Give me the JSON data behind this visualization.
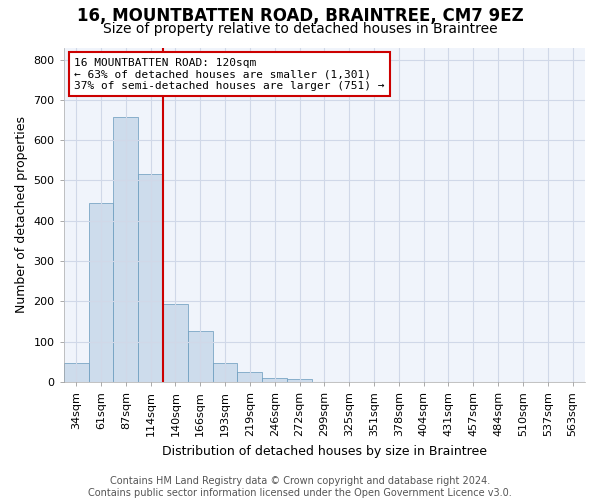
{
  "title": "16, MOUNTBATTEN ROAD, BRAINTREE, CM7 9EZ",
  "subtitle": "Size of property relative to detached houses in Braintree",
  "xlabel": "Distribution of detached houses by size in Braintree",
  "ylabel": "Number of detached properties",
  "bar_values": [
    47,
    443,
    657,
    517,
    193,
    126,
    47,
    24,
    10,
    8,
    0,
    0,
    0,
    0,
    0,
    0,
    0,
    0,
    0,
    0,
    0
  ],
  "categories": [
    "34sqm",
    "61sqm",
    "87sqm",
    "114sqm",
    "140sqm",
    "166sqm",
    "193sqm",
    "219sqm",
    "246sqm",
    "272sqm",
    "299sqm",
    "325sqm",
    "351sqm",
    "378sqm",
    "404sqm",
    "431sqm",
    "457sqm",
    "484sqm",
    "510sqm",
    "537sqm",
    "563sqm"
  ],
  "bar_color": "#cddcec",
  "bar_edge_color": "#6699bb",
  "vline_x_index": 3,
  "vline_color": "#cc0000",
  "annotation_line1": "16 MOUNTBATTEN ROAD: 120sqm",
  "annotation_line2": "← 63% of detached houses are smaller (1,301)",
  "annotation_line3": "37% of semi-detached houses are larger (751) →",
  "annotation_box_facecolor": "#ffffff",
  "annotation_box_edgecolor": "#cc0000",
  "ylim": [
    0,
    830
  ],
  "yticks": [
    0,
    100,
    200,
    300,
    400,
    500,
    600,
    700,
    800
  ],
  "footer_line1": "Contains HM Land Registry data © Crown copyright and database right 2024.",
  "footer_line2": "Contains public sector information licensed under the Open Government Licence v3.0.",
  "bg_color": "#ffffff",
  "plot_bg_color": "#f0f4fb",
  "grid_color": "#d0d8e8",
  "title_fontsize": 12,
  "subtitle_fontsize": 10,
  "axis_label_fontsize": 9,
  "tick_fontsize": 8,
  "footer_fontsize": 7,
  "annot_fontsize": 8
}
